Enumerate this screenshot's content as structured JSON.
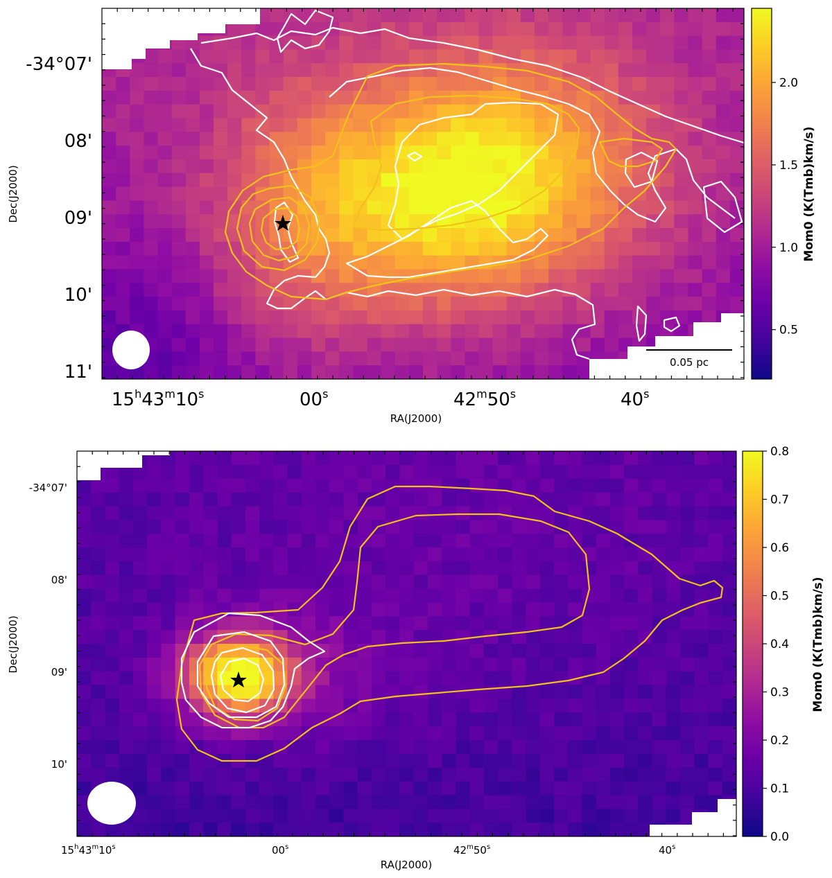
{
  "chart_data": [
    {
      "type": "heatmap",
      "xlabel": "RA(J2000)",
      "ylabel": "Dec(J2000)",
      "x_ticks": [
        {
          "main": "15",
          "sup1": "h",
          "mid": "43",
          "sup2": "m",
          "tail": "10",
          "sup3": "s"
        },
        {
          "main": "00",
          "sup1": "s"
        },
        {
          "main": "42",
          "sup1": "m",
          "mid": "50",
          "sup2": "s"
        },
        {
          "main": "40",
          "sup1": "s"
        }
      ],
      "y_ticks": [
        "-34°07'",
        "08'",
        "09'",
        "10'",
        "11'"
      ],
      "colorbar": {
        "label": "Mom0 (K(Tmb)km/s)",
        "ticks": [
          "0.5",
          "1.0",
          "1.5",
          "2.0"
        ],
        "range": [
          0.2,
          2.45
        ],
        "colormap": "plasma"
      },
      "scalebar_label": "0.05 pc",
      "marker": "star",
      "contour_colors": {
        "white": "#ffffff",
        "yellow": "#f2c21a"
      }
    },
    {
      "type": "heatmap",
      "xlabel": "RA(J2000)",
      "ylabel": "Dec(J2000)",
      "x_ticks": [
        {
          "main": "15",
          "sup1": "h",
          "mid": "43",
          "sup2": "m",
          "tail": "10",
          "sup3": "s"
        },
        {
          "main": "00",
          "sup1": "s"
        },
        {
          "main": "42",
          "sup1": "m",
          "mid": "50",
          "sup2": "s"
        },
        {
          "main": "40",
          "sup1": "s"
        }
      ],
      "y_ticks": [
        "-34°07'",
        "08'",
        "09'",
        "10'"
      ],
      "colorbar": {
        "label": "Mom0 (K(Tmb)km/s)",
        "ticks": [
          "0.0",
          "0.1",
          "0.2",
          "0.3",
          "0.4",
          "0.5",
          "0.6",
          "0.7",
          "0.8"
        ],
        "range": [
          0.0,
          0.8
        ],
        "colormap": "plasma"
      },
      "marker": "star",
      "contour_colors": {
        "white": "#ffffff",
        "yellow": "#f2c21a"
      }
    }
  ]
}
